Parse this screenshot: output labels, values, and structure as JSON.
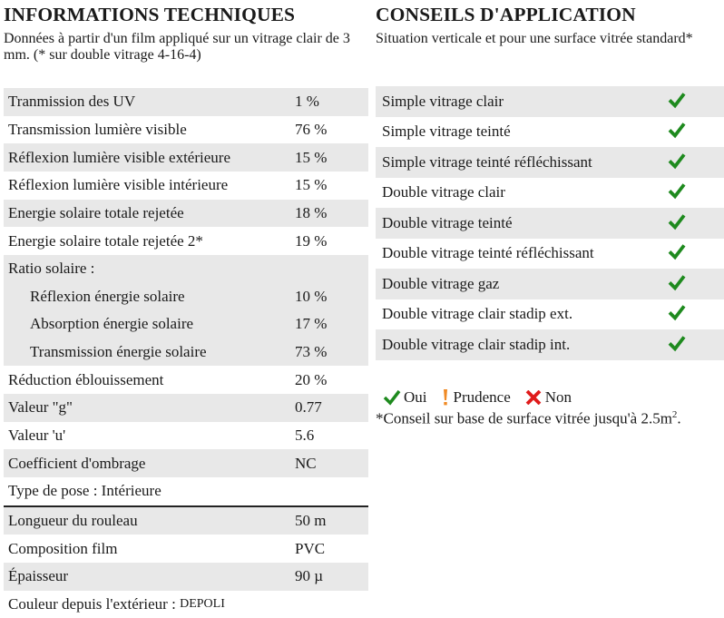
{
  "left": {
    "title": "INFORMATIONS TECHNIQUES",
    "subtitle": "Données à partir d'un film appliqué sur un vitrage clair de 3 mm. (* sur double vitrage 4-16-4)",
    "rows": [
      {
        "label": "Tranmission des UV",
        "value": "1 %"
      },
      {
        "label": "Transmission lumière visible",
        "value": "76 %"
      },
      {
        "label": "Réflexion lumière visible extérieure",
        "value": "15 %"
      },
      {
        "label": "Réflexion lumière visible intérieure",
        "value": "15 %"
      },
      {
        "label": "Energie solaire totale rejetée",
        "value": "18 %"
      },
      {
        "label": "Energie solaire totale rejetée 2*",
        "value": "19 %"
      },
      {
        "label": "Ratio solaire :",
        "value": ""
      },
      {
        "label": "Réflexion énergie solaire",
        "value": "10 %"
      },
      {
        "label": "Absorption énergie solaire",
        "value": "17 %"
      },
      {
        "label": "Transmission énergie solaire",
        "value": "73 %"
      },
      {
        "label": "Réduction éblouissement",
        "value": "20 %"
      },
      {
        "label": "Valeur \"g\"",
        "value": "0.77"
      },
      {
        "label": "Valeur 'u'",
        "value": "5.6"
      },
      {
        "label": "Coefficient d'ombrage",
        "value": "NC"
      },
      {
        "label": "Type de pose : Intérieure",
        "value": ""
      },
      {
        "label": "Longueur du rouleau",
        "value": "50 m"
      },
      {
        "label": "Composition film",
        "value": "PVC"
      },
      {
        "label": "Épaisseur",
        "value": "90 µ"
      }
    ],
    "color_label": "Couleur depuis l'extérieur : ",
    "color_value": "DEPOLI"
  },
  "right": {
    "title": "CONSEILS D'APPLICATION",
    "subtitle": "Situation verticale et pour une surface vitrée standard*",
    "rows": [
      {
        "label": "Simple vitrage clair",
        "status": "check-icon"
      },
      {
        "label": "Simple vitrage teinté",
        "status": "check-icon"
      },
      {
        "label": "Simple vitrage teinté réfléchissant",
        "status": "check-icon"
      },
      {
        "label": "Double vitrage clair",
        "status": "check-icon"
      },
      {
        "label": "Double vitrage teinté",
        "status": "check-icon"
      },
      {
        "label": "Double vitrage teinté réfléchissant",
        "status": "check-icon"
      },
      {
        "label": "Double vitrage gaz",
        "status": "check-icon"
      },
      {
        "label": "Double vitrage clair stadip ext.",
        "status": "check-icon"
      },
      {
        "label": "Double vitrage clair stadip int.",
        "status": "check-icon"
      }
    ],
    "legend": {
      "yes": "Oui",
      "caution": "Prudence",
      "no": "Non"
    },
    "note": "*Conseil sur base de surface vitrée jusqu'à 2.5m",
    "note_sup": "2",
    "note_end": "."
  },
  "colors": {
    "check": "#1e8a1e",
    "caution": "#f08a24",
    "no": "#e01b1b",
    "row_grey": "#e8e8e8"
  }
}
